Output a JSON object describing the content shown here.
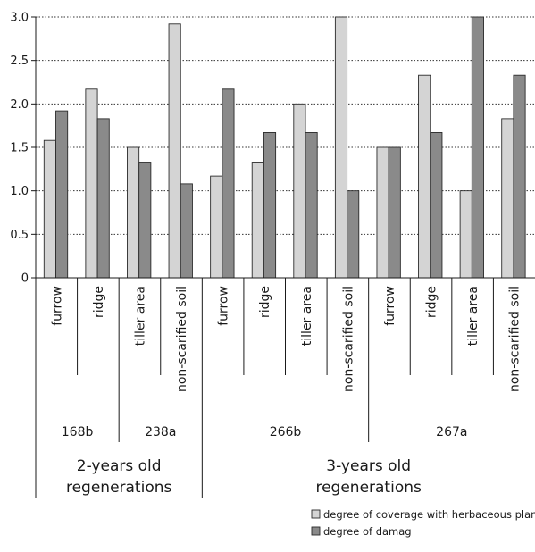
{
  "chart_data": {
    "type": "bar",
    "categories": [
      {
        "label": "furrow",
        "site": "168b",
        "age": "2-years old regenerations"
      },
      {
        "label": "ridge",
        "site": "168b",
        "age": "2-years old regenerations"
      },
      {
        "label": "tiller area",
        "site": "238a",
        "age": "2-years old regenerations"
      },
      {
        "label": "non-scarified soil",
        "site": "238a",
        "age": "2-years old regenerations"
      },
      {
        "label": "furrow",
        "site": "266b",
        "age": "3-years old regenerations"
      },
      {
        "label": "ridge",
        "site": "266b",
        "age": "3-years old regenerations"
      },
      {
        "label": "tiller area",
        "site": "266b",
        "age": "3-years old regenerations"
      },
      {
        "label": "non-scarified soil",
        "site": "266b",
        "age": "3-years old regenerations"
      },
      {
        "label": "furrow",
        "site": "267a",
        "age": "3-years old regenerations"
      },
      {
        "label": "ridge",
        "site": "267a",
        "age": "3-years old regenerations"
      },
      {
        "label": "tiller area",
        "site": "267a",
        "age": "3-years old regenerations"
      },
      {
        "label": "non-scarified soil",
        "site": "267a",
        "age": "3-years old regenerations"
      }
    ],
    "sites": [
      "168b",
      "238a",
      "266b",
      "267a"
    ],
    "age_groups": [
      {
        "line1": "2-years old",
        "line2": "regenerations"
      },
      {
        "line1": "3-years old",
        "line2": "regenerations"
      }
    ],
    "series": [
      {
        "name": "degree of coverage with herbaceous plant",
        "color": "#d4d4d4",
        "values": [
          1.58,
          2.17,
          1.5,
          2.92,
          1.17,
          1.33,
          2.0,
          3.0,
          1.5,
          2.33,
          1.0,
          1.83
        ]
      },
      {
        "name": "degree of damag",
        "color": "#8a8a8a",
        "values": [
          1.92,
          1.83,
          1.33,
          1.08,
          2.17,
          1.67,
          1.67,
          1.0,
          1.5,
          1.67,
          3.0,
          2.33
        ]
      }
    ],
    "ylim": [
      0,
      3
    ],
    "yticks": [
      "0",
      "0.5",
      "1.0",
      "1.5",
      "2.0",
      "2.5",
      "3.0"
    ],
    "grid": "horizontal dotted",
    "legend_position": "bottom-right"
  }
}
